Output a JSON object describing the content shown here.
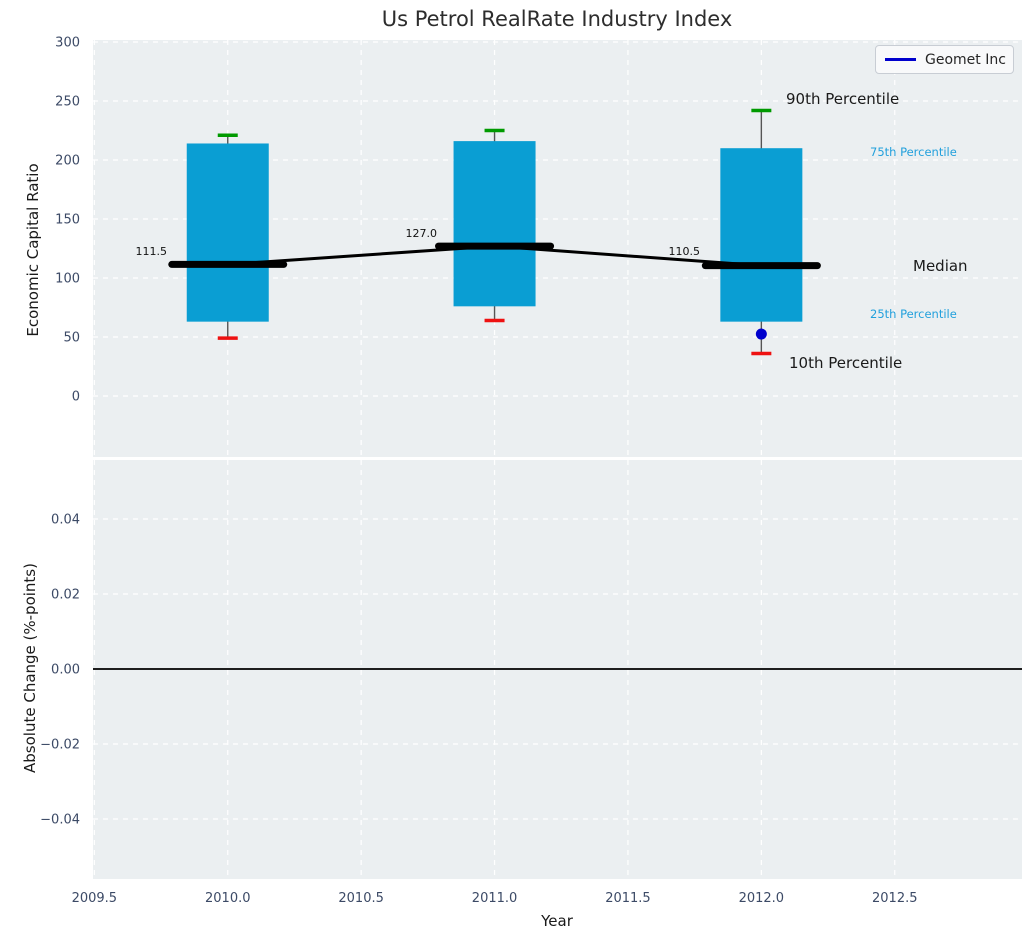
{
  "title": "Us Petrol RealRate Industry Index",
  "legend": {
    "label": "Geomet Inc",
    "line_color": "#0000cd"
  },
  "colors": {
    "axes_bg": "#ebeff1",
    "grid": "#ffffff",
    "box_fill": "#0a9ed3",
    "cap_high": "#009a00",
    "cap_low": "#ee1111",
    "whisker": "#555555",
    "median_line": "#000000",
    "trend_line": "#000000",
    "company_point": "#0000cd",
    "zero_line": "#000000",
    "tick_text": "#3c4a66",
    "percentile_text": "#22a0dc",
    "label_text": "#1a1a1a"
  },
  "chart_data": [
    {
      "type": "boxplot",
      "subplot": "top",
      "title": "Us Petrol RealRate Industry Index",
      "ylabel": "Economic Capital Ratio",
      "ylim": [
        -55,
        305
      ],
      "ytick_values": [
        300,
        250,
        200,
        150,
        100,
        50,
        0
      ],
      "ytick_labels": [
        "300",
        "250",
        "200",
        "150",
        "100",
        "50",
        "0"
      ],
      "xtick_values": [
        2009.5,
        2010,
        2010.5,
        2011,
        2011.5,
        2012,
        2012.5
      ],
      "grid": true,
      "legend_position": "upper right",
      "boxes": [
        {
          "year": 2010,
          "p10": 49,
          "p25": 63,
          "median": 111.5,
          "p75": 214,
          "p90": 221,
          "median_label": "111.5"
        },
        {
          "year": 2011,
          "p10": 64,
          "p25": 76,
          "median": 127.0,
          "p75": 216,
          "p90": 225,
          "median_label": "127.0"
        },
        {
          "year": 2012,
          "p10": 36,
          "p25": 63,
          "median": 110.5,
          "p75": 210,
          "p90": 242,
          "median_label": "110.5"
        }
      ],
      "median_trend": {
        "x": [
          2010,
          2011,
          2012
        ],
        "values": [
          111.5,
          127.0,
          110.5
        ]
      },
      "company_series": {
        "name": "Geomet Inc",
        "points": [
          {
            "year": 2012,
            "value": 52.5
          }
        ]
      },
      "annotations": [
        {
          "text": "90th Percentile",
          "color": "#1a1a1a"
        },
        {
          "text": "75th Percentile",
          "color": "#22a0dc"
        },
        {
          "text": "Median",
          "color": "#1a1a1a"
        },
        {
          "text": "25th Percentile",
          "color": "#22a0dc"
        },
        {
          "text": "10th Percentile",
          "color": "#1a1a1a"
        }
      ]
    },
    {
      "type": "line",
      "subplot": "bottom",
      "ylabel": "Absolute Change (%-points)",
      "xlabel": "Year",
      "ylim": [
        -0.056,
        0.056
      ],
      "ytick_values": [
        0.04,
        0.02,
        0,
        -0.02,
        -0.04
      ],
      "ytick_labels": [
        "0.04",
        "0.02",
        "0.00",
        "−0.02",
        "−0.04"
      ],
      "xtick_values": [
        2009.5,
        2010,
        2010.5,
        2011,
        2011.5,
        2012,
        2012.5
      ],
      "xtick_labels": [
        "2009.5",
        "2010.0",
        "2010.5",
        "2011.0",
        "2011.5",
        "2012.0",
        "2012.5"
      ],
      "zero_line": 0.0,
      "grid": true,
      "series": []
    }
  ]
}
